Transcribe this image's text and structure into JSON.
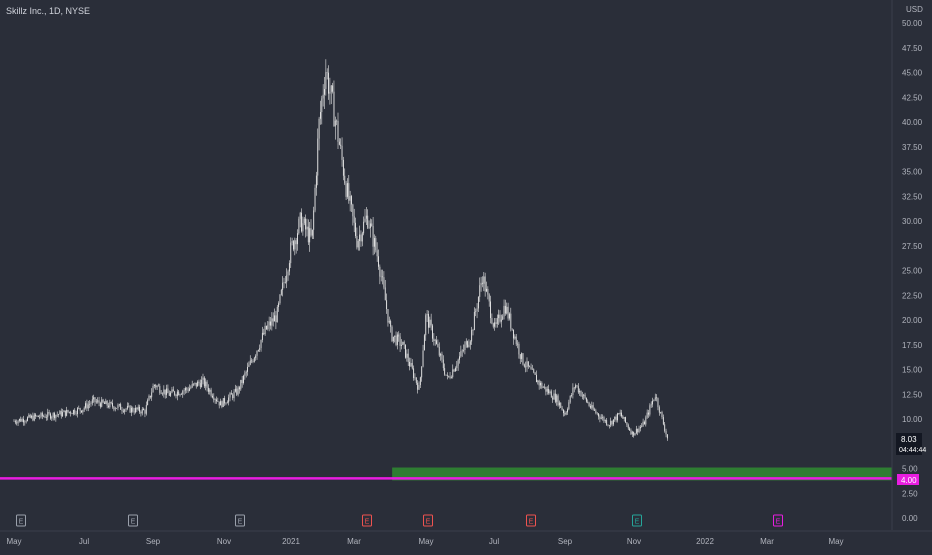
{
  "header": {
    "symbol_title": "Skillz Inc., 1D, NYSE",
    "currency": "USD"
  },
  "price_axis": {
    "ticks": [
      "50.00",
      "47.50",
      "45.00",
      "42.50",
      "40.00",
      "37.50",
      "35.00",
      "32.50",
      "30.00",
      "27.50",
      "25.00",
      "22.50",
      "20.00",
      "17.50",
      "15.00",
      "12.50",
      "10.00",
      "7.50",
      "5.00",
      "2.50",
      "0.00"
    ],
    "last_price": "8.03",
    "countdown": "04:44:44",
    "level_label": "4.00"
  },
  "time_axis": {
    "labels": [
      "May",
      "Jul",
      "Sep",
      "Nov",
      "2021",
      "Mar",
      "May",
      "Jul",
      "Sep",
      "Nov",
      "2022",
      "Mar",
      "May"
    ]
  },
  "events": [
    "E",
    "E",
    "E",
    "E",
    "E",
    "E",
    "E",
    "E"
  ],
  "colors": {
    "background": "#2a2e39",
    "candles": "#e6e6e6",
    "level_line": "#e81de0",
    "zone": "#2e7d32",
    "axis_text": "#b2b5be",
    "earnings_neutral": "#9aa0ab",
    "earnings_miss": "#ef5350",
    "earnings_beat": "#26a69a",
    "earnings_future": "#e81de0"
  },
  "chart_data": {
    "type": "line",
    "title": "Skillz Inc., 1D, NYSE",
    "ylabel": "USD",
    "ylim": [
      0,
      50
    ],
    "x_range": [
      "2020-05",
      "2022-05"
    ],
    "series": [
      {
        "x": [
          "2020-05-01",
          "2020-05-20",
          "2020-06-10",
          "2020-06-30",
          "2020-07-10",
          "2020-07-20",
          "2020-08-10",
          "2020-08-25",
          "2020-09-02",
          "2020-09-15",
          "2020-10-01",
          "2020-10-15",
          "2020-10-31",
          "2020-11-15",
          "2020-11-30",
          "2020-12-10",
          "2020-12-20",
          "2021-01-01",
          "2021-01-10",
          "2021-01-20",
          "2021-01-26",
          "2021-02-01",
          "2021-02-10",
          "2021-02-20",
          "2021-03-01",
          "2021-03-10",
          "2021-03-20",
          "2021-03-31",
          "2021-04-10",
          "2021-04-25",
          "2021-05-01",
          "2021-05-10",
          "2021-05-20",
          "2021-06-01",
          "2021-06-10",
          "2021-06-20",
          "2021-07-01",
          "2021-07-10",
          "2021-07-25",
          "2021-08-10",
          "2021-08-25",
          "2021-09-01",
          "2021-09-10",
          "2021-09-25",
          "2021-10-10",
          "2021-10-20",
          "2021-10-31",
          "2021-11-10",
          "2021-11-20",
          "2021-12-01"
        ],
        "values": [
          9.8,
          10.2,
          10.5,
          11.0,
          11.8,
          11.5,
          11.0,
          10.8,
          13.5,
          12.5,
          13.0,
          13.8,
          11.5,
          12.8,
          16.5,
          19.0,
          20.5,
          27.0,
          30.0,
          28.0,
          39.5,
          45.5,
          40.0,
          33.0,
          28.0,
          30.5,
          26.0,
          18.5,
          17.5,
          13.0,
          20.5,
          17.5,
          14.0,
          16.5,
          18.5,
          24.5,
          19.0,
          21.5,
          16.0,
          13.5,
          12.0,
          10.5,
          13.5,
          11.0,
          9.5,
          10.5,
          8.5,
          9.5,
          12.5,
          8.0
        ]
      }
    ],
    "last_price": 8.03,
    "horizontal_level": 4.0,
    "zone": {
      "from_date": "2021-04-01",
      "low": 3.8,
      "high": 5.1
    }
  }
}
